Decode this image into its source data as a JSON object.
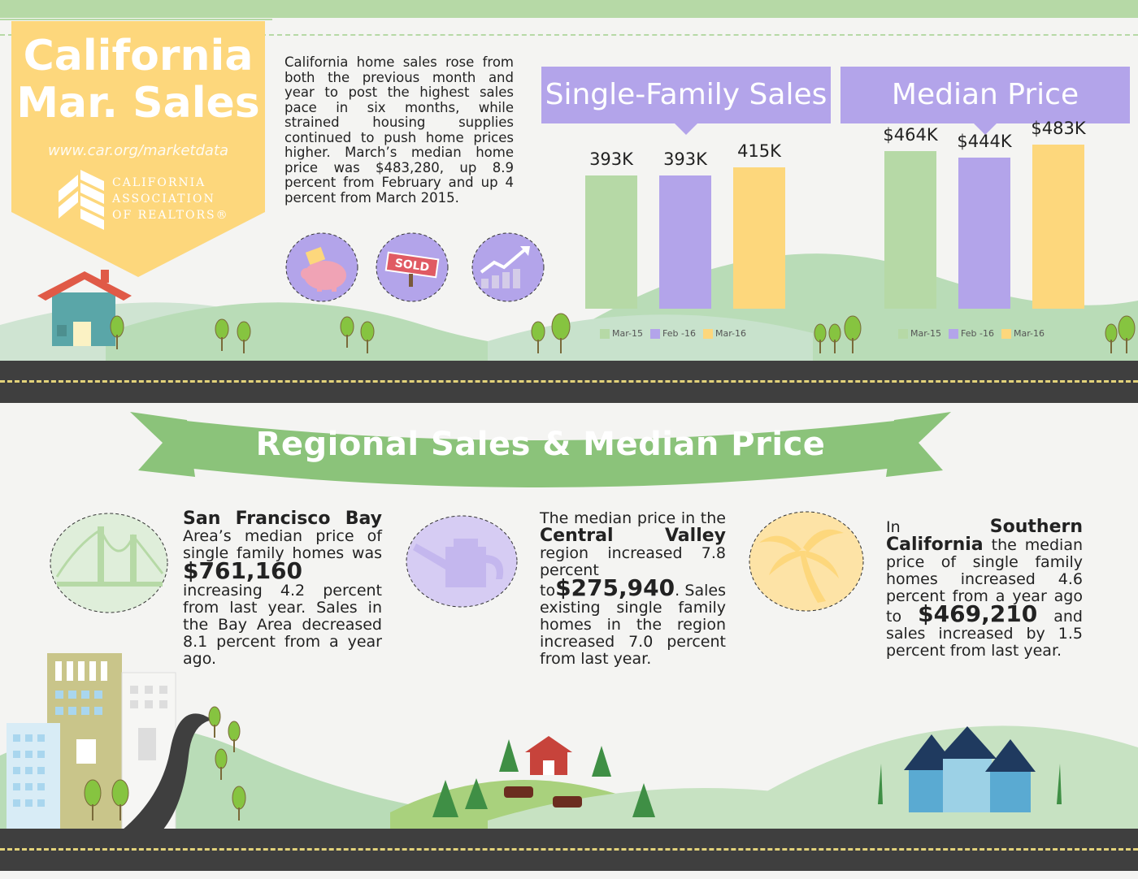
{
  "banner": {
    "title_line1": "California",
    "title_line2": "Mar. Sales",
    "url": "www.car.org/marketdata",
    "org_line1": "CALIFORNIA",
    "org_line2": "ASSOCIATION",
    "org_line3": "OF REALTORS®"
  },
  "intro": "California home sales rose from both the previous month and year to post the highest sales pace in six months, while strained housing supplies continued to push home prices higher. March’s median home price was $483,280, up 8.9 percent from February and up 4 percent from March 2015.",
  "icons": [
    "piggy-bank-icon",
    "sold-sign-icon",
    "growth-chart-icon"
  ],
  "sold_label": "SOLD",
  "colors": {
    "mar15": "#b6d9a6",
    "feb16": "#b3a4ea",
    "mar16": "#fdd77c",
    "road": "#3f3f3f",
    "ribbon": "#8bc37a"
  },
  "chart_data": [
    {
      "type": "bar",
      "title": "Single-Family Sales",
      "categories": [
        "Mar-15",
        "Feb -16",
        "Mar-16"
      ],
      "values": [
        393,
        393,
        415
      ],
      "labels": [
        "393K",
        "393K",
        "415K"
      ],
      "legend": [
        "Mar-15",
        "Feb -16",
        "Mar-16"
      ],
      "ylim": [
        0,
        550
      ]
    },
    {
      "type": "bar",
      "title": "Median Price",
      "categories": [
        "Mar-15",
        "Feb -16",
        "Mar-16"
      ],
      "values": [
        464,
        444,
        483
      ],
      "labels": [
        "$464K",
        "$444K",
        "$483K"
      ],
      "legend": [
        "Mar-15",
        "Feb -16",
        "Mar-16"
      ],
      "ylim": [
        0,
        550
      ]
    }
  ],
  "regional_title": "Regional Sales & Median Price",
  "regions": {
    "sf": {
      "name": "San Francisco Bay",
      "text1": "Area’s median price of single family homes was",
      "price": "$761,160",
      "text2": "increasing 4.2 percent from last year. Sales in the Bay Area decreased 8.1 percent from a year ago."
    },
    "cv": {
      "text1": "The median price in the",
      "name": "Central Valley",
      "text2": "region increased 7.8 percent to",
      "price": "$275,940",
      "text3": ". Sales existing single family homes in the region increased 7.0 percent from last year."
    },
    "sc": {
      "text1": "In",
      "name": "Southern California",
      "text2": "the median price of single family homes increased 4.6 percent from a year ago to",
      "price": "$469,210",
      "text3": "and sales increased by 1.5 percent from last year."
    }
  }
}
